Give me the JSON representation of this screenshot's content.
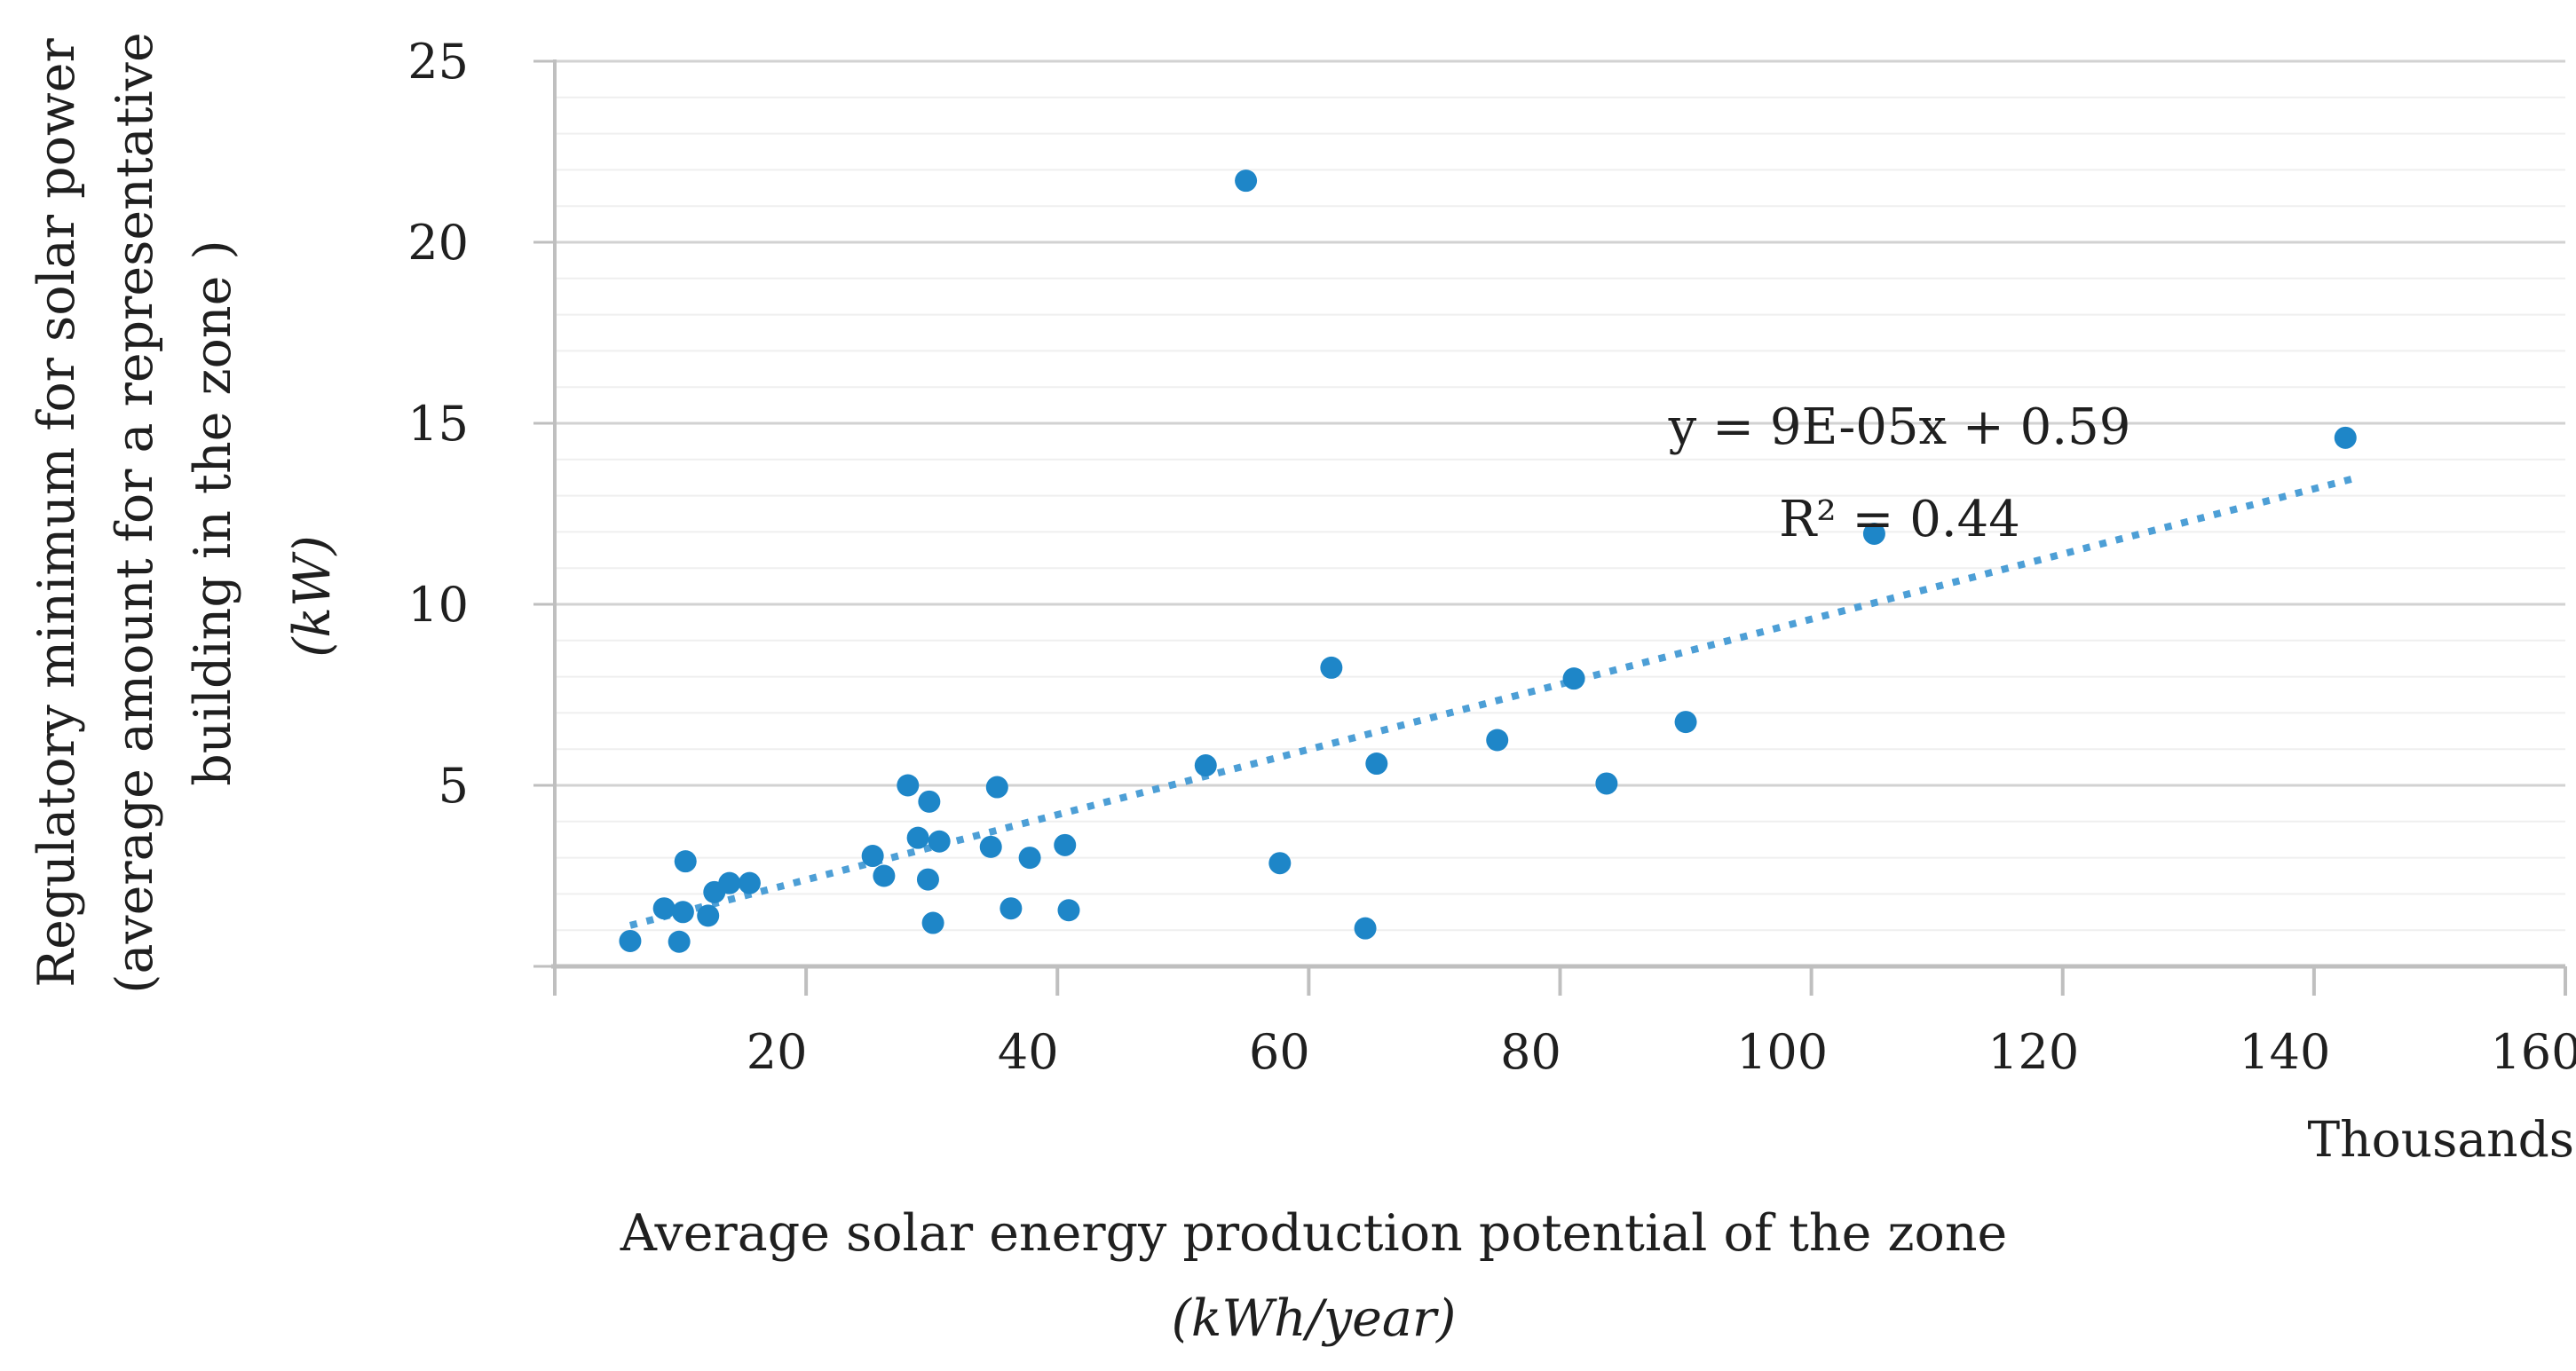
{
  "chart_data": {
    "type": "scatter",
    "title": "",
    "xlabel": "Average solar energy production potential of the zone",
    "xlabel_units": "(kWh/year)",
    "ylabel_lines": [
      "Regulatory minimum for solar power",
      "(average amount for a representative",
      "building in the zone )"
    ],
    "ylabel_units": "(kW)",
    "x_axis_multiplier_label": "Thousands",
    "annotation": {
      "equation": "y = 9E-05x + 0.59",
      "r2": "R² = 0.44"
    },
    "xlim": [
      0,
      160
    ],
    "ylim": [
      0,
      25
    ],
    "x_tick_step": 20,
    "x_tick_labels": [
      "20",
      "40",
      "60",
      "80",
      "100",
      "120",
      "140",
      "160"
    ],
    "y_tick_step": 5,
    "y_tick_labels": [
      "5",
      "10",
      "15",
      "20",
      "25"
    ],
    "y_minor_step": 1,
    "grid": true,
    "legend_position": "none",
    "x_units_note": "x values are in thousands of kWh/year",
    "points": [
      [
        6.0,
        0.7
      ],
      [
        9.9,
        0.68
      ],
      [
        8.7,
        1.6
      ],
      [
        10.2,
        1.5
      ],
      [
        12.2,
        1.4
      ],
      [
        12.7,
        2.05
      ],
      [
        13.9,
        2.3
      ],
      [
        15.5,
        2.3
      ],
      [
        10.4,
        2.9
      ],
      [
        25.3,
        3.05
      ],
      [
        26.2,
        2.5
      ],
      [
        28.1,
        5.0
      ],
      [
        29.8,
        4.55
      ],
      [
        35.2,
        4.95
      ],
      [
        28.9,
        3.55
      ],
      [
        30.6,
        3.45
      ],
      [
        29.7,
        2.4
      ],
      [
        30.1,
        1.2
      ],
      [
        34.7,
        3.3
      ],
      [
        37.8,
        3.0
      ],
      [
        40.6,
        3.35
      ],
      [
        36.3,
        1.6
      ],
      [
        40.9,
        1.55
      ],
      [
        51.8,
        5.55
      ],
      [
        55.0,
        21.7
      ],
      [
        57.7,
        2.85
      ],
      [
        61.8,
        8.25
      ],
      [
        64.5,
        1.05
      ],
      [
        65.4,
        5.6
      ],
      [
        75.0,
        6.25
      ],
      [
        81.1,
        7.95
      ],
      [
        83.7,
        5.05
      ],
      [
        90.0,
        6.75
      ],
      [
        105.0,
        11.95
      ],
      [
        142.5,
        14.6
      ]
    ],
    "trendline": {
      "style": "dotted",
      "slope_per_thousand": 0.09,
      "intercept": 0.59,
      "x_start": 6,
      "x_end": 143
    },
    "colors": {
      "marker": "#1E86C8",
      "trendline": "#4D9FD6",
      "grid_minor": "#EFEFEF",
      "grid_major": "#D2D2D2",
      "axis": "#BFBFBF",
      "text": "#1F1F1F",
      "background": "#FFFFFF"
    }
  }
}
